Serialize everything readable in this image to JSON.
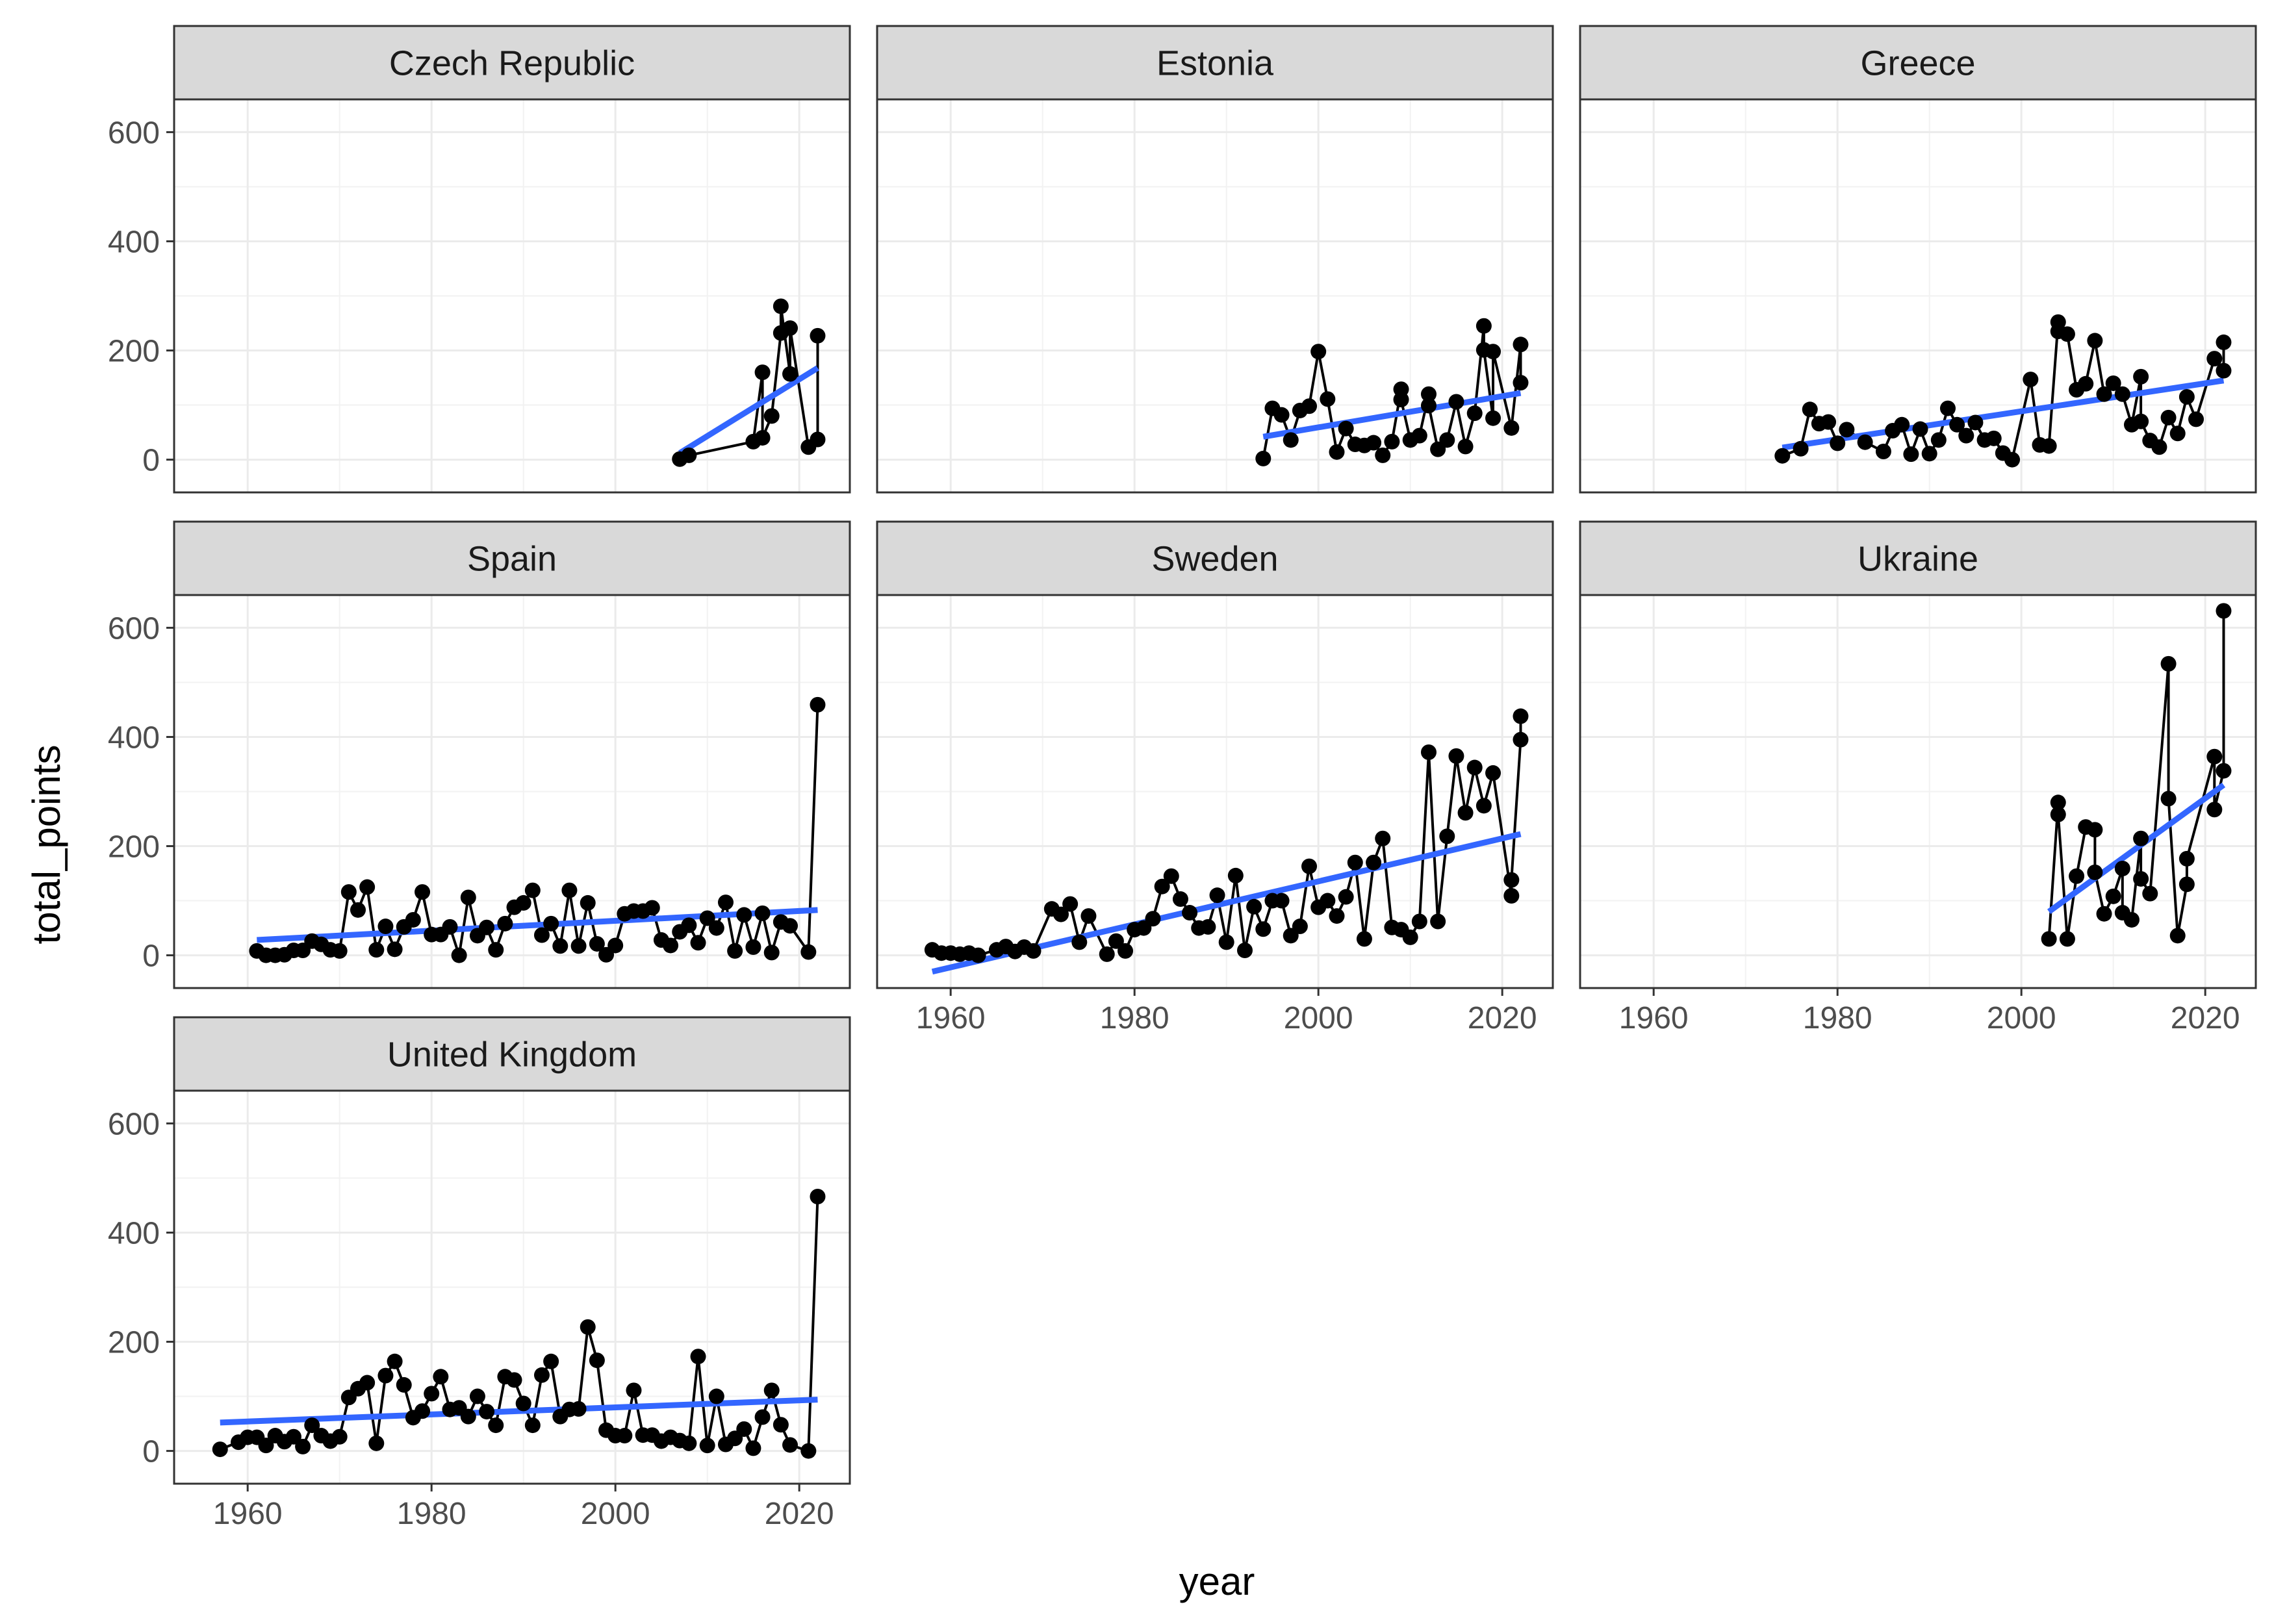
{
  "chart_data": {
    "type": "line",
    "xlabel": "year",
    "ylabel": "total_points",
    "xlim": [
      1952,
      2025.5
    ],
    "ylim": [
      -60,
      660
    ],
    "x_ticks": [
      1960,
      1980,
      2000,
      2020
    ],
    "y_ticks": [
      0,
      200,
      400,
      600
    ],
    "grid": true,
    "legend": "none",
    "colors": {
      "points": "#000000",
      "trend": "#3366ff",
      "strip_fill": "#d9d9d9",
      "grid": "#ebebeb"
    },
    "panels": [
      {
        "name": "Czech Republic",
        "x": [
          2007,
          2008,
          2015,
          2016,
          2016,
          2017,
          2018,
          2018,
          2019,
          2019,
          2021,
          2022,
          2022
        ],
        "y": [
          1,
          8,
          33,
          160,
          40,
          80,
          232,
          281,
          157,
          241,
          23,
          37,
          227
        ],
        "trend": {
          "x": [
            2007,
            2022
          ],
          "y": [
            12,
            168
          ]
        }
      },
      {
        "name": "Estonia",
        "x": [
          1994,
          1995,
          1996,
          1997,
          1998,
          1999,
          2000,
          2001,
          2002,
          2003,
          2004,
          2005,
          2006,
          2007,
          2008,
          2009,
          2009,
          2010,
          2011,
          2012,
          2012,
          2013,
          2014,
          2015,
          2016,
          2017,
          2018,
          2018,
          2019,
          2019,
          2021,
          2022,
          2022
        ],
        "y": [
          2,
          94,
          82,
          36,
          90,
          98,
          198,
          111,
          14,
          57,
          28,
          26,
          31,
          8,
          33,
          129,
          110,
          36,
          44,
          120,
          99,
          19,
          36,
          106,
          24,
          85,
          245,
          201,
          76,
          198,
          58,
          211,
          141
        ],
        "trend": {
          "x": [
            1994,
            2022
          ],
          "y": [
            42,
            122
          ]
        }
      },
      {
        "name": "Greece",
        "x": [
          1974,
          1976,
          1977,
          1978,
          1979,
          1980,
          1981,
          1983,
          1985,
          1986,
          1987,
          1988,
          1989,
          1990,
          1991,
          1992,
          1993,
          1994,
          1995,
          1996,
          1997,
          1998,
          1999,
          2001,
          2002,
          2003,
          2004,
          2004,
          2005,
          2006,
          2007,
          2008,
          2009,
          2010,
          2011,
          2012,
          2013,
          2013,
          2014,
          2015,
          2016,
          2017,
          2018,
          2019,
          2021,
          2022,
          2022
        ],
        "y": [
          7,
          20,
          92,
          66,
          69,
          30,
          55,
          32,
          15,
          53,
          64,
          10,
          56,
          11,
          36,
          94,
          64,
          44,
          68,
          36,
          39,
          12,
          0,
          147,
          27,
          25,
          252,
          235,
          230,
          128,
          139,
          218,
          120,
          140,
          120,
          64,
          152,
          70,
          35,
          23,
          77,
          48,
          115,
          74,
          185,
          163,
          215
        ],
        "trend": {
          "x": [
            1974,
            2022
          ],
          "y": [
            22,
            145
          ]
        }
      },
      {
        "name": "Spain",
        "x": [
          1961,
          1962,
          1963,
          1964,
          1965,
          1966,
          1967,
          1968,
          1969,
          1970,
          1971,
          1972,
          1973,
          1974,
          1975,
          1976,
          1977,
          1978,
          1979,
          1980,
          1981,
          1982,
          1983,
          1984,
          1985,
          1986,
          1987,
          1988,
          1989,
          1990,
          1991,
          1992,
          1993,
          1994,
          1995,
          1996,
          1997,
          1998,
          1999,
          2000,
          2001,
          2002,
          2003,
          2004,
          2005,
          2006,
          2007,
          2008,
          2009,
          2010,
          2011,
          2012,
          2013,
          2014,
          2015,
          2016,
          2017,
          2018,
          2019,
          2021,
          2022
        ],
        "y": [
          8,
          0,
          0,
          1,
          9,
          9,
          26,
          20,
          10,
          8,
          116,
          83,
          125,
          10,
          53,
          11,
          52,
          65,
          116,
          38,
          38,
          52,
          0,
          106,
          36,
          51,
          10,
          58,
          88,
          96,
          119,
          37,
          58,
          17,
          119,
          17,
          96,
          21,
          1,
          18,
          76,
          81,
          81,
          87,
          28,
          18,
          43,
          55,
          23,
          68,
          50,
          97,
          8,
          74,
          15,
          77,
          5,
          61,
          54,
          6,
          459
        ],
        "trend": {
          "x": [
            1961,
            2022
          ],
          "y": [
            28,
            83
          ]
        }
      },
      {
        "name": "Sweden",
        "x": [
          1958,
          1959,
          1960,
          1961,
          1962,
          1963,
          1965,
          1966,
          1967,
          1968,
          1969,
          1971,
          1972,
          1973,
          1974,
          1975,
          1977,
          1978,
          1979,
          1980,
          1981,
          1982,
          1983,
          1984,
          1985,
          1986,
          1987,
          1988,
          1989,
          1990,
          1991,
          1992,
          1993,
          1994,
          1995,
          1996,
          1997,
          1998,
          1999,
          2000,
          2001,
          2002,
          2003,
          2004,
          2005,
          2006,
          2007,
          2008,
          2009,
          2010,
          2011,
          2012,
          2013,
          2014,
          2015,
          2016,
          2017,
          2018,
          2019,
          2021,
          2021,
          2022,
          2022
        ],
        "y": [
          10,
          4,
          4,
          2,
          4,
          0,
          10,
          16,
          7,
          15,
          8,
          85,
          75,
          94,
          24,
          72,
          2,
          26,
          8,
          47,
          50,
          67,
          126,
          145,
          103,
          78,
          50,
          52,
          110,
          24,
          146,
          9,
          89,
          48,
          100,
          100,
          36,
          53,
          163,
          88,
          100,
          72,
          107,
          170,
          30,
          170,
          214,
          51,
          47,
          33,
          62,
          372,
          62,
          218,
          365,
          261,
          344,
          274,
          334,
          109,
          138,
          395,
          438
        ],
        "trend": {
          "x": [
            1958,
            2022
          ],
          "y": [
            -30,
            222
          ]
        }
      },
      {
        "name": "Ukraine",
        "x": [
          2003,
          2004,
          2004,
          2005,
          2006,
          2007,
          2008,
          2008,
          2009,
          2010,
          2011,
          2011,
          2012,
          2013,
          2013,
          2014,
          2016,
          2016,
          2017,
          2018,
          2018,
          2021,
          2021,
          2022,
          2022
        ],
        "y": [
          30,
          280,
          258,
          30,
          145,
          235,
          230,
          152,
          76,
          108,
          159,
          78,
          65,
          214,
          140,
          113,
          534,
          287,
          36,
          130,
          177,
          364,
          267,
          338,
          631
        ],
        "trend": {
          "x": [
            2003,
            2022
          ],
          "y": [
            80,
            312
          ]
        }
      },
      {
        "name": "United Kingdom",
        "x": [
          1957,
          1959,
          1960,
          1961,
          1962,
          1963,
          1964,
          1965,
          1966,
          1967,
          1968,
          1969,
          1970,
          1971,
          1972,
          1973,
          1974,
          1975,
          1976,
          1977,
          1978,
          1979,
          1980,
          1981,
          1982,
          1983,
          1984,
          1985,
          1986,
          1987,
          1988,
          1989,
          1990,
          1991,
          1992,
          1993,
          1994,
          1995,
          1996,
          1997,
          1998,
          1999,
          2000,
          2001,
          2002,
          2003,
          2004,
          2005,
          2006,
          2007,
          2008,
          2009,
          2010,
          2011,
          2012,
          2013,
          2014,
          2015,
          2016,
          2017,
          2018,
          2019,
          2021,
          2022
        ],
        "y": [
          3,
          16,
          25,
          25,
          10,
          28,
          17,
          26,
          8,
          47,
          28,
          18,
          26,
          98,
          114,
          125,
          14,
          138,
          164,
          121,
          61,
          73,
          105,
          136,
          76,
          79,
          63,
          100,
          72,
          47,
          136,
          130,
          87,
          47,
          139,
          164,
          63,
          76,
          77,
          227,
          166,
          38,
          28,
          28,
          111,
          29,
          29,
          18,
          25,
          19,
          14,
          173,
          10,
          100,
          12,
          23,
          40,
          5,
          62,
          111,
          48,
          11,
          0,
          466
        ],
        "trend": {
          "x": [
            1957,
            2022
          ],
          "y": [
            52,
            94
          ]
        }
      }
    ]
  }
}
